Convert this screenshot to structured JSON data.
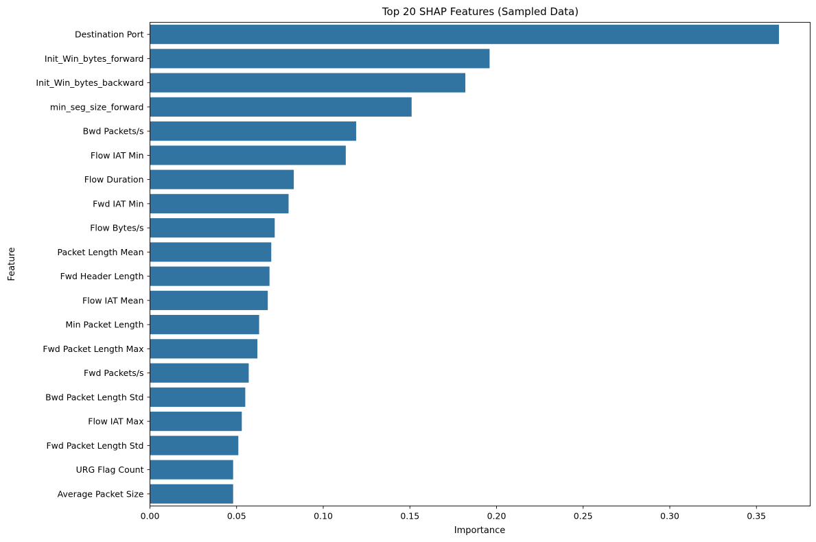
{
  "chart_data": {
    "type": "bar",
    "orientation": "horizontal",
    "title": "Top 20 SHAP Features (Sampled Data)",
    "xlabel": "Importance",
    "ylabel": "Feature",
    "xlim": [
      0,
      0.381
    ],
    "xticks": [
      0.0,
      0.05,
      0.1,
      0.15,
      0.2,
      0.25,
      0.3,
      0.35
    ],
    "xtick_labels": [
      "0.00",
      "0.05",
      "0.10",
      "0.15",
      "0.20",
      "0.25",
      "0.30",
      "0.35"
    ],
    "grid": false,
    "bar_color": "#3274a1",
    "categories": [
      "Destination Port",
      "Init_Win_bytes_forward",
      "Init_Win_bytes_backward",
      "min_seg_size_forward",
      "Bwd Packets/s",
      "Flow IAT Min",
      "Flow Duration",
      "Fwd IAT Min",
      "Flow Bytes/s",
      "Packet Length Mean",
      "Fwd Header Length",
      "Flow IAT Mean",
      "Min Packet Length",
      "Fwd Packet Length Max",
      "Fwd Packets/s",
      "Bwd Packet Length Std",
      "Flow IAT Max",
      "Fwd Packet Length Std",
      "URG Flag Count",
      "Average Packet Size"
    ],
    "values": [
      0.363,
      0.196,
      0.182,
      0.151,
      0.119,
      0.113,
      0.083,
      0.08,
      0.072,
      0.07,
      0.069,
      0.068,
      0.063,
      0.062,
      0.057,
      0.055,
      0.053,
      0.051,
      0.048,
      0.048
    ]
  }
}
